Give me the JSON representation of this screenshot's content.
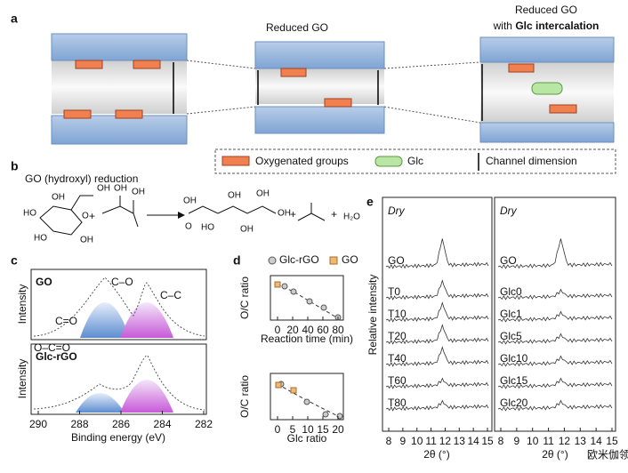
{
  "panel_a": {
    "label": "a",
    "middle_title": "Reduced GO",
    "right_title": "Reduced GO",
    "right_subtitle_prefix": "with ",
    "right_subtitle_bold": "Glc intercalation",
    "legend": [
      "Oxygenated groups",
      "Glc",
      "Channel dimension"
    ]
  },
  "panel_b": {
    "label": "b",
    "title": "GO (hydroxyl) reduction",
    "molecule_labels": [
      "OH",
      "HO",
      "OH",
      "HO",
      "OH",
      "O",
      "OH",
      "OH",
      "+",
      "OH",
      "HO",
      "O",
      "OH",
      "OH",
      "OH",
      "OH",
      "+",
      "+",
      "H₂O"
    ]
  },
  "panel_c": {
    "label": "c",
    "top_sample": "GO",
    "bottom_sample": "Glc-rGO",
    "peaks_top": [
      "C–O",
      "C–C",
      "C=O",
      "O–C=O"
    ],
    "y_label": "Intensity",
    "x_label": "Binding energy (eV)",
    "xticks": [
      290,
      288,
      286,
      284,
      282
    ]
  },
  "panel_d": {
    "label": "d",
    "legend": [
      "Glc-rGO",
      "GO"
    ],
    "y_label": "O/C ratio",
    "top_x_label": "Reaction time (min)",
    "top_xticks": [
      0,
      20,
      40,
      60,
      80
    ],
    "bottom_x_label": "Glc ratio",
    "bottom_xticks": [
      0,
      5,
      10,
      15,
      20
    ]
  },
  "panel_e": {
    "label": "e",
    "condition": "Dry",
    "y_label": "Relative intensity",
    "left_traces": [
      "GO",
      "T0",
      "T10",
      "T20",
      "T40",
      "T60",
      "T80"
    ],
    "right_traces": [
      "GO",
      "Glc0",
      "Glc1",
      "Glc5",
      "Glc10",
      "Glc15",
      "Glc20"
    ],
    "xticks": [
      8,
      9,
      10,
      11,
      12,
      13,
      14,
      15
    ],
    "x_label": "2θ (°)"
  },
  "watermark": "欧米伽领地"
}
